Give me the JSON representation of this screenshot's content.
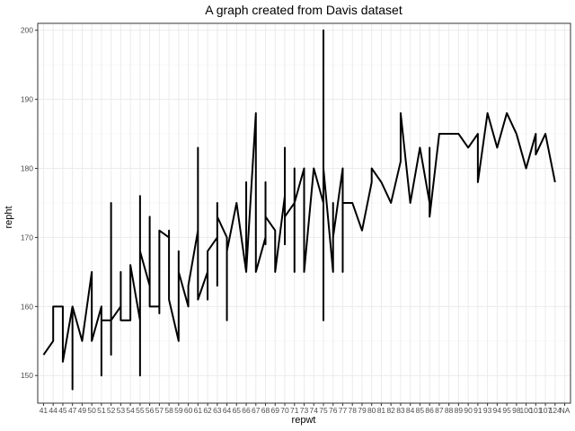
{
  "chart_data": {
    "type": "line",
    "title": "A graph created from Davis dataset",
    "xlabel": "repwt",
    "ylabel": "repht",
    "ylim": [
      146,
      201
    ],
    "yticks": [
      150,
      160,
      170,
      180,
      190,
      200
    ],
    "grid": true,
    "categories": [
      "41",
      "44",
      "45",
      "47",
      "49",
      "50",
      "51",
      "52",
      "53",
      "54",
      "55",
      "56",
      "57",
      "58",
      "59",
      "60",
      "61",
      "62",
      "63",
      "64",
      "65",
      "66",
      "67",
      "68",
      "69",
      "70",
      "71",
      "73",
      "74",
      "75",
      "76",
      "77",
      "78",
      "79",
      "80",
      "81",
      "82",
      "83",
      "84",
      "85",
      "86",
      "87",
      "88",
      "89",
      "90",
      "91",
      "93",
      "94",
      "95",
      "98",
      "100",
      "101",
      "107",
      "124",
      "NA"
    ],
    "points": [
      {
        "x": "41",
        "y": 153
      },
      {
        "x": "44",
        "y": 155
      },
      {
        "x": "44",
        "y": 160
      },
      {
        "x": "45",
        "y": 160
      },
      {
        "x": "45",
        "y": 152
      },
      {
        "x": "47",
        "y": 160
      },
      {
        "x": "47",
        "y": 148
      },
      {
        "x": "47",
        "y": 160
      },
      {
        "x": "49",
        "y": 155
      },
      {
        "x": "50",
        "y": 165
      },
      {
        "x": "50",
        "y": 155
      },
      {
        "x": "51",
        "y": 160
      },
      {
        "x": "51",
        "y": 150
      },
      {
        "x": "51",
        "y": 158
      },
      {
        "x": "52",
        "y": 158
      },
      {
        "x": "52",
        "y": 175
      },
      {
        "x": "52",
        "y": 153
      },
      {
        "x": "52",
        "y": 158
      },
      {
        "x": "53",
        "y": 160
      },
      {
        "x": "53",
        "y": 165
      },
      {
        "x": "53",
        "y": 158
      },
      {
        "x": "54",
        "y": 158
      },
      {
        "x": "54",
        "y": 166
      },
      {
        "x": "55",
        "y": 158
      },
      {
        "x": "55",
        "y": 176
      },
      {
        "x": "55",
        "y": 150
      },
      {
        "x": "55",
        "y": 168
      },
      {
        "x": "56",
        "y": 163
      },
      {
        "x": "56",
        "y": 173
      },
      {
        "x": "56",
        "y": 160
      },
      {
        "x": "57",
        "y": 160
      },
      {
        "x": "57",
        "y": 159
      },
      {
        "x": "57",
        "y": 171
      },
      {
        "x": "58",
        "y": 170
      },
      {
        "x": "58",
        "y": 171
      },
      {
        "x": "58",
        "y": 161
      },
      {
        "x": "59",
        "y": 155
      },
      {
        "x": "59",
        "y": 168
      },
      {
        "x": "59",
        "y": 165
      },
      {
        "x": "60",
        "y": 160
      },
      {
        "x": "60",
        "y": 163
      },
      {
        "x": "61",
        "y": 171
      },
      {
        "x": "61",
        "y": 183
      },
      {
        "x": "61",
        "y": 161
      },
      {
        "x": "62",
        "y": 165
      },
      {
        "x": "62",
        "y": 161
      },
      {
        "x": "62",
        "y": 168
      },
      {
        "x": "63",
        "y": 170
      },
      {
        "x": "63",
        "y": 175
      },
      {
        "x": "63",
        "y": 163
      },
      {
        "x": "63",
        "y": 173
      },
      {
        "x": "64",
        "y": 170
      },
      {
        "x": "64",
        "y": 158
      },
      {
        "x": "64",
        "y": 168
      },
      {
        "x": "65",
        "y": 175
      },
      {
        "x": "66",
        "y": 165
      },
      {
        "x": "66",
        "y": 178
      },
      {
        "x": "66",
        "y": 165
      },
      {
        "x": "67",
        "y": 188
      },
      {
        "x": "67",
        "y": 165
      },
      {
        "x": "68",
        "y": 170
      },
      {
        "x": "68",
        "y": 178
      },
      {
        "x": "68",
        "y": 169
      },
      {
        "x": "68",
        "y": 173
      },
      {
        "x": "69",
        "y": 171
      },
      {
        "x": "69",
        "y": 165
      },
      {
        "x": "70",
        "y": 176
      },
      {
        "x": "70",
        "y": 183
      },
      {
        "x": "70",
        "y": 169
      },
      {
        "x": "70",
        "y": 173
      },
      {
        "x": "71",
        "y": 175
      },
      {
        "x": "71",
        "y": 180
      },
      {
        "x": "71",
        "y": 165
      },
      {
        "x": "71",
        "y": 175
      },
      {
        "x": "73",
        "y": 180
      },
      {
        "x": "73",
        "y": 165
      },
      {
        "x": "74",
        "y": 180
      },
      {
        "x": "75",
        "y": 175
      },
      {
        "x": "75",
        "y": 200
      },
      {
        "x": "75",
        "y": 158
      },
      {
        "x": "75",
        "y": 180
      },
      {
        "x": "76",
        "y": 165
      },
      {
        "x": "76",
        "y": 175
      },
      {
        "x": "76",
        "y": 170
      },
      {
        "x": "77",
        "y": 180
      },
      {
        "x": "77",
        "y": 165
      },
      {
        "x": "77",
        "y": 175
      },
      {
        "x": "78",
        "y": 175
      },
      {
        "x": "79",
        "y": 171
      },
      {
        "x": "80",
        "y": 178
      },
      {
        "x": "80",
        "y": 180
      },
      {
        "x": "81",
        "y": 178
      },
      {
        "x": "82",
        "y": 175
      },
      {
        "x": "83",
        "y": 181
      },
      {
        "x": "83",
        "y": 188
      },
      {
        "x": "84",
        "y": 175
      },
      {
        "x": "85",
        "y": 183
      },
      {
        "x": "86",
        "y": 175
      },
      {
        "x": "86",
        "y": 183
      },
      {
        "x": "86",
        "y": 173
      },
      {
        "x": "87",
        "y": 185
      },
      {
        "x": "88",
        "y": 185
      },
      {
        "x": "89",
        "y": 185
      },
      {
        "x": "90",
        "y": 183
      },
      {
        "x": "91",
        "y": 185
      },
      {
        "x": "91",
        "y": 178
      },
      {
        "x": "93",
        "y": 188
      },
      {
        "x": "94",
        "y": 183
      },
      {
        "x": "95",
        "y": 188
      },
      {
        "x": "98",
        "y": 185
      },
      {
        "x": "100",
        "y": 180
      },
      {
        "x": "101",
        "y": 185
      },
      {
        "x": "101",
        "y": 182
      },
      {
        "x": "107",
        "y": 185
      },
      {
        "x": "124",
        "y": 178
      }
    ]
  }
}
